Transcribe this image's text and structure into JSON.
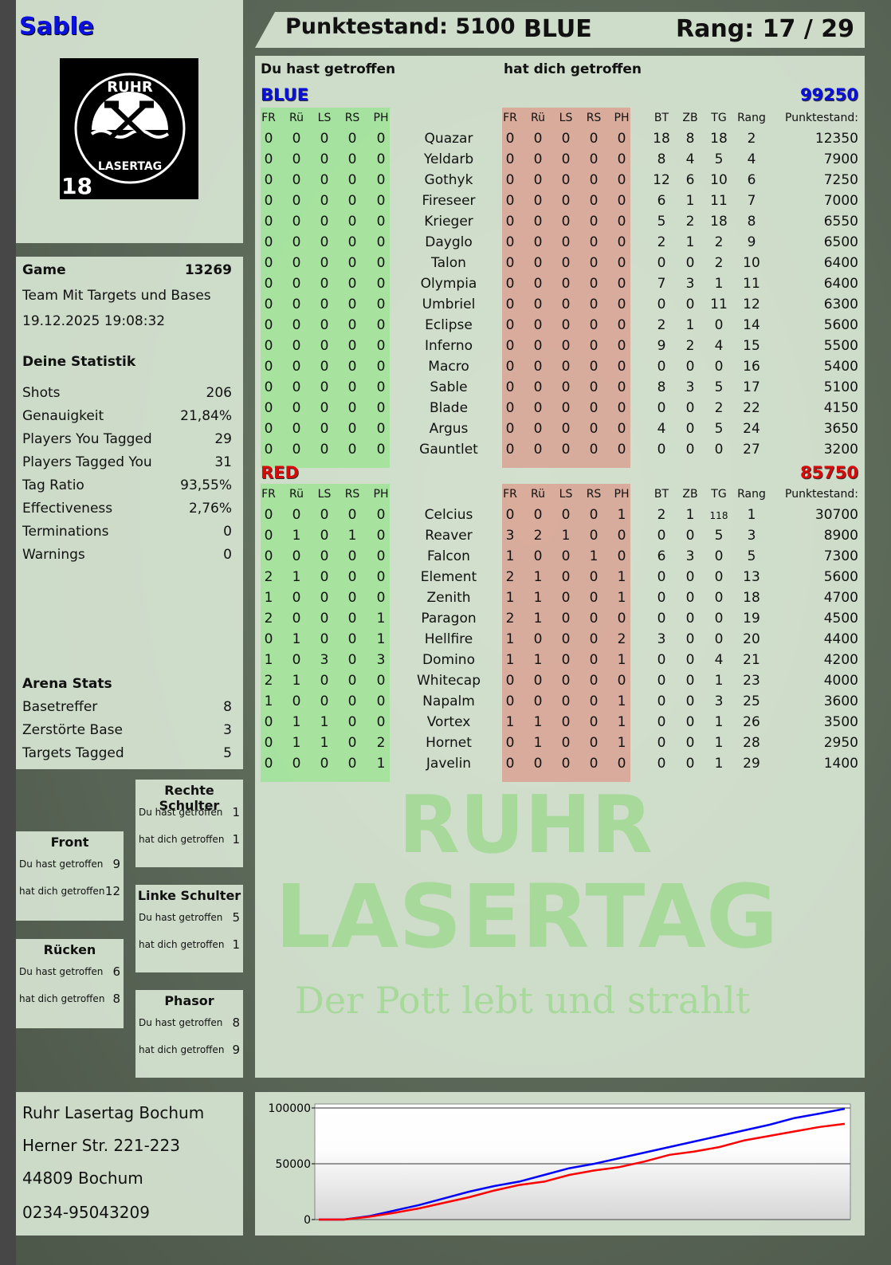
{
  "player": {
    "name": "Sable",
    "logo_text": [
      "RUHR",
      "LASERTAG",
      "18"
    ]
  },
  "header": {
    "score_label": "Punktestand: 5100",
    "team": "BLUE",
    "rank_label": "Rang: 17 / 29"
  },
  "game": {
    "label": "Game",
    "id": "13269",
    "mode": "Team Mit Targets und Bases",
    "datetime": "19.12.2025 19:08:32"
  },
  "stats": {
    "title": "Deine Statistik",
    "items": [
      {
        "label": "Shots",
        "value": "206"
      },
      {
        "label": "Genauigkeit",
        "value": "21,84%"
      },
      {
        "label": "Players You Tagged",
        "value": "29"
      },
      {
        "label": "Players Tagged You",
        "value": "31"
      },
      {
        "label": "Tag Ratio",
        "value": "93,55%"
      },
      {
        "label": "Effectiveness",
        "value": "2,76%"
      },
      {
        "label": "Terminations",
        "value": "0"
      },
      {
        "label": "Warnings",
        "value": "0"
      }
    ]
  },
  "arena": {
    "title": "Arena Stats",
    "items": [
      {
        "label": "Basetreffer",
        "value": "8"
      },
      {
        "label": "Zerstörte Base",
        "value": "3"
      },
      {
        "label": "Targets Tagged",
        "value": "5"
      }
    ]
  },
  "hits": {
    "rechte_schulter": {
      "title": "Rechte Schulter",
      "you_hit_label": "Du hast getroffen",
      "you_hit": "1",
      "hit_you_label": "hat dich getroffen",
      "hit_you": "1"
    },
    "front": {
      "title": "Front",
      "you_hit_label": "Du hast getroffen",
      "you_hit": "9",
      "hit_you_label": "hat dich getroffen",
      "hit_you": "12"
    },
    "linke_schulter": {
      "title": "Linke Schulter",
      "you_hit_label": "Du hast getroffen",
      "you_hit": "5",
      "hit_you_label": "hat dich getroffen",
      "hit_you": "1"
    },
    "ruecken": {
      "title": "Rücken",
      "you_hit_label": "Du hast getroffen",
      "you_hit": "6",
      "hit_you_label": "hat dich getroffen",
      "hit_you": "8"
    },
    "phasor": {
      "title": "Phasor",
      "you_hit_label": "Du hast getroffen",
      "you_hit": "8",
      "hit_you_label": "hat dich getroffen",
      "hit_you": "9"
    }
  },
  "address": [
    "Ruhr Lasertag Bochum",
    "Herner Str. 221-223",
    "44809 Bochum",
    "0234-95043209"
  ],
  "watermark": {
    "line1": "RUHR",
    "line2": "LASERTAG",
    "slogan": "Der Pott lebt und strahlt"
  },
  "table": {
    "you_hit_label": "Du hast getroffen",
    "hit_you_label": "hat dich getroffen",
    "hit_columns": [
      "FR",
      "Rü",
      "LS",
      "RS",
      "PH"
    ],
    "stat_columns": [
      "BT",
      "ZB",
      "TG",
      "Rang"
    ],
    "score_column": "Punktestand:",
    "teams": [
      {
        "name": "BLUE",
        "color": "#0a10d8",
        "total": "99250",
        "players": [
          [
            "Quazar",
            [
              0,
              0,
              0,
              0,
              0
            ],
            [
              0,
              0,
              0,
              0,
              0
            ],
            [
              18,
              8,
              18,
              2
            ],
            12350
          ],
          [
            "Yeldarb",
            [
              0,
              0,
              0,
              0,
              0
            ],
            [
              0,
              0,
              0,
              0,
              0
            ],
            [
              8,
              4,
              5,
              4
            ],
            7900
          ],
          [
            "Gothyk",
            [
              0,
              0,
              0,
              0,
              0
            ],
            [
              0,
              0,
              0,
              0,
              0
            ],
            [
              12,
              6,
              10,
              6
            ],
            7250
          ],
          [
            "Fireseer",
            [
              0,
              0,
              0,
              0,
              0
            ],
            [
              0,
              0,
              0,
              0,
              0
            ],
            [
              6,
              1,
              11,
              7
            ],
            7000
          ],
          [
            "Krieger",
            [
              0,
              0,
              0,
              0,
              0
            ],
            [
              0,
              0,
              0,
              0,
              0
            ],
            [
              5,
              2,
              18,
              8
            ],
            6550
          ],
          [
            "Dayglo",
            [
              0,
              0,
              0,
              0,
              0
            ],
            [
              0,
              0,
              0,
              0,
              0
            ],
            [
              2,
              1,
              2,
              9
            ],
            6500
          ],
          [
            "Talon",
            [
              0,
              0,
              0,
              0,
              0
            ],
            [
              0,
              0,
              0,
              0,
              0
            ],
            [
              0,
              0,
              2,
              10
            ],
            6400
          ],
          [
            "Olympia",
            [
              0,
              0,
              0,
              0,
              0
            ],
            [
              0,
              0,
              0,
              0,
              0
            ],
            [
              7,
              3,
              1,
              11
            ],
            6400
          ],
          [
            "Umbriel",
            [
              0,
              0,
              0,
              0,
              0
            ],
            [
              0,
              0,
              0,
              0,
              0
            ],
            [
              0,
              0,
              11,
              12
            ],
            6300
          ],
          [
            "Eclipse",
            [
              0,
              0,
              0,
              0,
              0
            ],
            [
              0,
              0,
              0,
              0,
              0
            ],
            [
              2,
              1,
              0,
              14
            ],
            5600
          ],
          [
            "Inferno",
            [
              0,
              0,
              0,
              0,
              0
            ],
            [
              0,
              0,
              0,
              0,
              0
            ],
            [
              9,
              2,
              4,
              15
            ],
            5500
          ],
          [
            "Macro",
            [
              0,
              0,
              0,
              0,
              0
            ],
            [
              0,
              0,
              0,
              0,
              0
            ],
            [
              0,
              0,
              0,
              16
            ],
            5400
          ],
          [
            "Sable",
            [
              0,
              0,
              0,
              0,
              0
            ],
            [
              0,
              0,
              0,
              0,
              0
            ],
            [
              8,
              3,
              5,
              17
            ],
            5100
          ],
          [
            "Blade",
            [
              0,
              0,
              0,
              0,
              0
            ],
            [
              0,
              0,
              0,
              0,
              0
            ],
            [
              0,
              0,
              2,
              22
            ],
            4150
          ],
          [
            "Argus",
            [
              0,
              0,
              0,
              0,
              0
            ],
            [
              0,
              0,
              0,
              0,
              0
            ],
            [
              4,
              0,
              5,
              24
            ],
            3650
          ],
          [
            "Gauntlet",
            [
              0,
              0,
              0,
              0,
              0
            ],
            [
              0,
              0,
              0,
              0,
              0
            ],
            [
              0,
              0,
              0,
              27
            ],
            3200
          ]
        ]
      },
      {
        "name": "RED",
        "color": "#d80a0a",
        "total": "85750",
        "players": [
          [
            "Celcius",
            [
              0,
              0,
              0,
              0,
              0
            ],
            [
              0,
              0,
              0,
              0,
              1
            ],
            [
              2,
              1,
              118,
              1
            ],
            30700
          ],
          [
            "Reaver",
            [
              0,
              1,
              0,
              1,
              0
            ],
            [
              3,
              2,
              1,
              0,
              0
            ],
            [
              0,
              0,
              5,
              3
            ],
            8900
          ],
          [
            "Falcon",
            [
              0,
              0,
              0,
              0,
              0
            ],
            [
              1,
              0,
              0,
              1,
              0
            ],
            [
              6,
              3,
              0,
              5
            ],
            7300
          ],
          [
            "Element",
            [
              2,
              1,
              0,
              0,
              0
            ],
            [
              2,
              1,
              0,
              0,
              1
            ],
            [
              0,
              0,
              0,
              13
            ],
            5600
          ],
          [
            "Zenith",
            [
              1,
              0,
              0,
              0,
              0
            ],
            [
              1,
              1,
              0,
              0,
              1
            ],
            [
              0,
              0,
              0,
              18
            ],
            4700
          ],
          [
            "Paragon",
            [
              2,
              0,
              0,
              0,
              1
            ],
            [
              2,
              1,
              0,
              0,
              0
            ],
            [
              0,
              0,
              0,
              19
            ],
            4500
          ],
          [
            "Hellfire",
            [
              0,
              1,
              0,
              0,
              1
            ],
            [
              1,
              0,
              0,
              0,
              2
            ],
            [
              3,
              0,
              0,
              20
            ],
            4400
          ],
          [
            "Domino",
            [
              1,
              0,
              3,
              0,
              3
            ],
            [
              1,
              1,
              0,
              0,
              1
            ],
            [
              0,
              0,
              4,
              21
            ],
            4200
          ],
          [
            "Whitecap",
            [
              2,
              1,
              0,
              0,
              0
            ],
            [
              0,
              0,
              0,
              0,
              0
            ],
            [
              0,
              0,
              1,
              23
            ],
            4000
          ],
          [
            "Napalm",
            [
              1,
              0,
              0,
              0,
              0
            ],
            [
              0,
              0,
              0,
              0,
              1
            ],
            [
              0,
              0,
              3,
              25
            ],
            3600
          ],
          [
            "Vortex",
            [
              0,
              1,
              1,
              0,
              0
            ],
            [
              1,
              1,
              0,
              0,
              1
            ],
            [
              0,
              0,
              1,
              26
            ],
            3500
          ],
          [
            "Hornet",
            [
              0,
              1,
              1,
              0,
              2
            ],
            [
              0,
              1,
              0,
              0,
              1
            ],
            [
              0,
              0,
              1,
              28
            ],
            2950
          ],
          [
            "Javelin",
            [
              0,
              0,
              0,
              0,
              1
            ],
            [
              0,
              0,
              0,
              0,
              0
            ],
            [
              0,
              0,
              1,
              29
            ],
            1400
          ]
        ]
      }
    ]
  },
  "chart_data": {
    "type": "line",
    "ylim": [
      0,
      100000
    ],
    "yticks": [
      "100000",
      "50000",
      "0"
    ],
    "grid": true,
    "series": [
      {
        "color": "#0000ff",
        "values": [
          0,
          0,
          3000,
          8000,
          13000,
          19000,
          25000,
          30000,
          34000,
          40000,
          46000,
          50000,
          55000,
          60000,
          65000,
          70000,
          75000,
          80000,
          85000,
          91000,
          95000,
          99250
        ]
      },
      {
        "color": "#ff0000",
        "values": [
          0,
          0,
          2500,
          6000,
          10000,
          15000,
          20000,
          26000,
          31000,
          34000,
          40000,
          44000,
          47000,
          52000,
          58000,
          61000,
          65000,
          71000,
          75000,
          79000,
          83000,
          85750
        ]
      }
    ]
  }
}
